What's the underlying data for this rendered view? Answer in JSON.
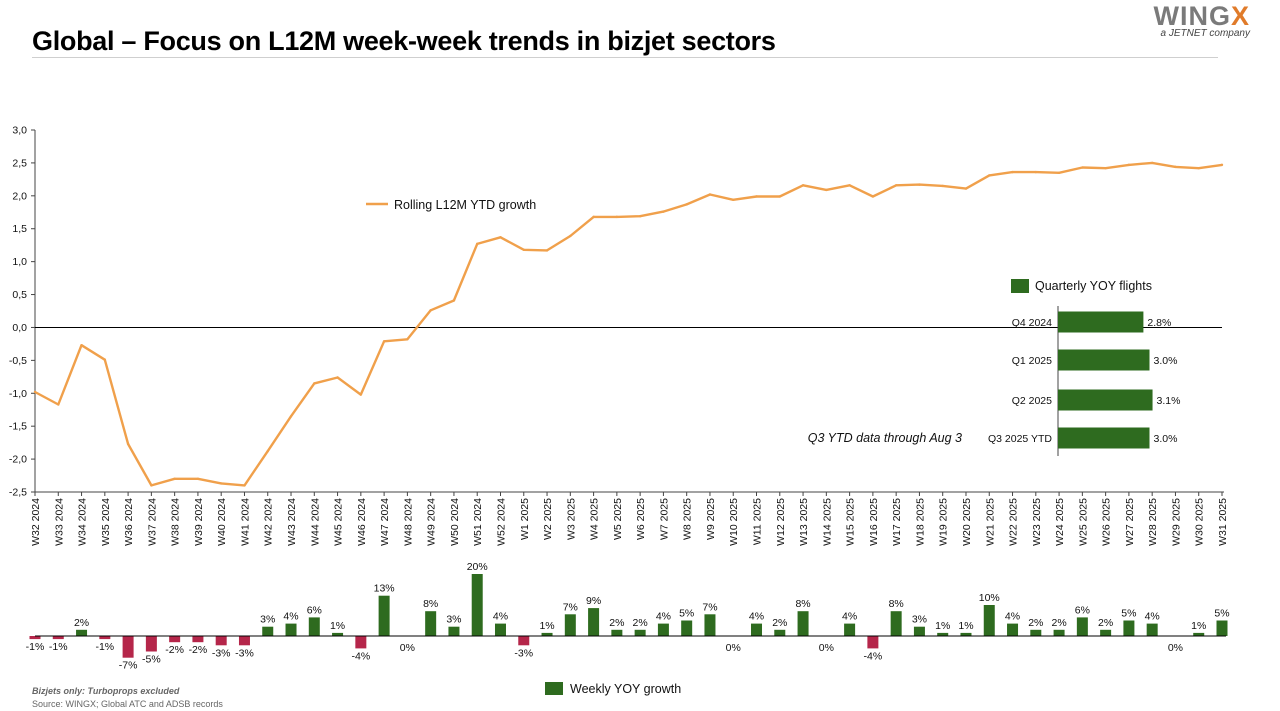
{
  "header": {
    "title": "Global – Focus on L12M week-week trends in bizjet sectors",
    "logo_main": "WING",
    "logo_x": "X",
    "logo_sub": "a JETNET company"
  },
  "footer": {
    "note_prefix": "Bizjets only: ",
    "note_emph": "Turboprops excluded",
    "source": "Source: WINGX; Global ATC and ADSB records"
  },
  "colors": {
    "line": "#F0A04B",
    "bar_pos": "#2E6B1F",
    "bar_neg": "#B5264A",
    "axis": "#000000"
  },
  "chart_data": [
    {
      "type": "line",
      "series": [
        {
          "name": "Rolling L12M YTD growth"
        }
      ],
      "ylim": [
        -2.5,
        3.0
      ],
      "yticks": [
        "-2,5",
        "-2,0",
        "-1,5",
        "-1,0",
        "-0,5",
        "0,0",
        "0,5",
        "1,0",
        "1,5",
        "2,0",
        "2,5",
        "3,0"
      ],
      "x": [
        "W32 2024",
        "W33 2024",
        "W34 2024",
        "W35 2024",
        "W36 2024",
        "W37 2024",
        "W38 2024",
        "W39 2024",
        "W40 2024",
        "W41 2024",
        "W42 2024",
        "W43 2024",
        "W44 2024",
        "W45 2024",
        "W46 2024",
        "W47 2024",
        "W48 2024",
        "W49 2024",
        "W50 2024",
        "W51 2024",
        "W52 2024",
        "W1 2025",
        "W2 2025",
        "W3 2025",
        "W4 2025",
        "W5 2025",
        "W6 2025",
        "W7 2025",
        "W8 2025",
        "W9 2025",
        "W10 2025",
        "W11 2025",
        "W12 2025",
        "W13 2025",
        "W14 2025",
        "W15 2025",
        "W16 2025",
        "W17 2025",
        "W18 2025",
        "W19 2025",
        "W20 2025",
        "W21 2025",
        "W22 2025",
        "W23 2025",
        "W24 2025",
        "W25 2025",
        "W26 2025",
        "W27 2025",
        "W28 2025",
        "W29 2025",
        "W30 2025",
        "W31 2025"
      ],
      "values": [
        -0.98,
        -1.17,
        -0.27,
        -0.49,
        -1.77,
        -2.4,
        -2.3,
        -2.3,
        -2.37,
        -2.4,
        -1.88,
        -1.35,
        -0.85,
        -0.76,
        -1.02,
        -0.21,
        -0.18,
        0.26,
        0.41,
        1.27,
        1.37,
        1.18,
        1.17,
        1.39,
        1.68,
        1.68,
        1.69,
        1.76,
        1.87,
        2.02,
        1.94,
        1.99,
        1.99,
        2.16,
        2.09,
        2.16,
        1.99,
        2.16,
        2.17,
        2.15,
        2.11,
        2.31,
        2.36,
        2.36,
        2.35,
        2.43,
        2.42,
        2.47,
        2.5,
        2.44,
        2.42,
        2.47
      ]
    },
    {
      "type": "bar",
      "orientation": "horizontal",
      "series": [
        {
          "name": "Quarterly YOY flights"
        }
      ],
      "categories": [
        "Q4 2024",
        "Q1 2025",
        "Q2 2025",
        "Q3 2025 YTD"
      ],
      "values": [
        2.8,
        3.0,
        3.1,
        3.0
      ],
      "labels": [
        "2.8%",
        "3.0%",
        "3.1%",
        "3.0%"
      ],
      "annotation": "Q3 YTD data through Aug 3"
    },
    {
      "type": "bar",
      "series": [
        {
          "name": "Weekly YOY growth"
        }
      ],
      "values": [
        -1,
        -1,
        2,
        -1,
        -7,
        -5,
        -2,
        -2,
        -3,
        -3,
        3,
        4,
        6,
        1,
        -4,
        13,
        0,
        8,
        3,
        20,
        4,
        -3,
        1,
        7,
        9,
        2,
        2,
        4,
        5,
        7,
        0,
        4,
        2,
        8,
        0,
        4,
        -4,
        8,
        3,
        1,
        1,
        10,
        4,
        2,
        2,
        6,
        2,
        5,
        4,
        0,
        1,
        5
      ],
      "labels": [
        "-1%",
        "-1%",
        "2%",
        "-1%",
        "-7%",
        "-5%",
        "-2%",
        "-2%",
        "-3%",
        "-3%",
        "3%",
        "4%",
        "6%",
        "1%",
        "-4%",
        "13%",
        "0%",
        "8%",
        "3%",
        "20%",
        "4%",
        "-3%",
        "1%",
        "7%",
        "9%",
        "2%",
        "2%",
        "4%",
        "5%",
        "7%",
        "0%",
        "4%",
        "2%",
        "8%",
        "0%",
        "4%",
        "-4%",
        "8%",
        "3%",
        "1%",
        "1%",
        "10%",
        "4%",
        "2%",
        "2%",
        "6%",
        "2%",
        "5%",
        "4%",
        "0%",
        "1%",
        "5%"
      ]
    }
  ]
}
